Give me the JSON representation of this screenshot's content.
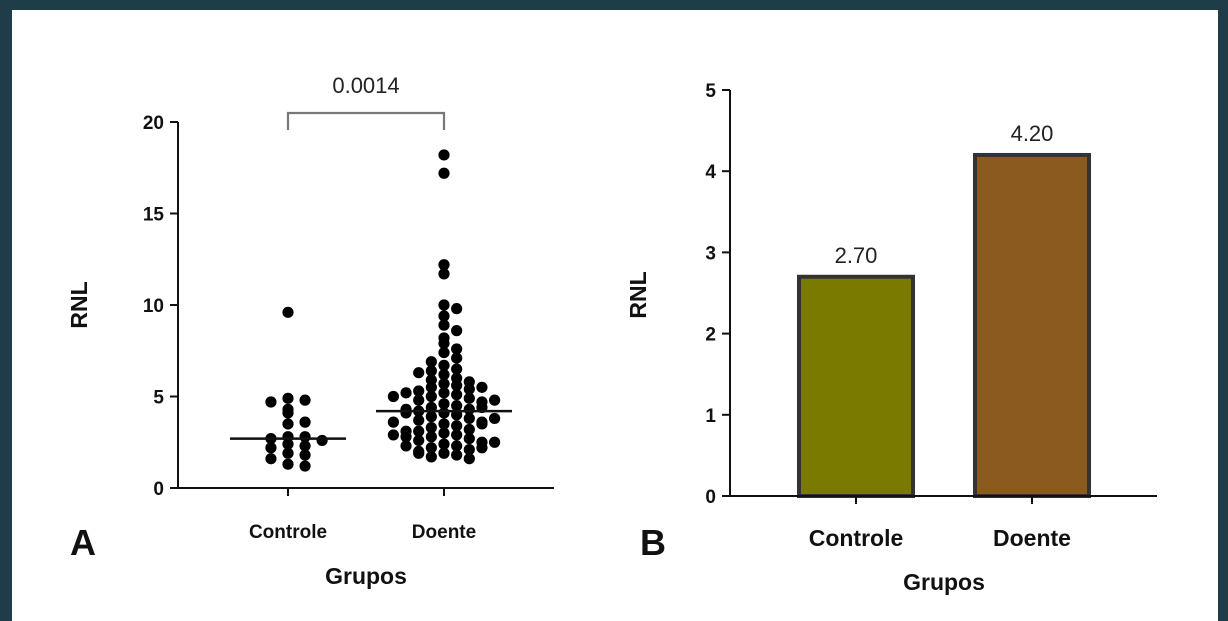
{
  "colors": {
    "outer_border": "#1f3d49",
    "background": "#ffffff",
    "points": "#000000",
    "bar_controle": "#7a7a00",
    "bar_doente": "#8b5a1e",
    "bar_edge": "#333333"
  },
  "chart_data": [
    {
      "panel": "A",
      "type": "scatter",
      "xlabel": "Grupos",
      "ylabel": "RNL",
      "categories": [
        "Controle",
        "Doente"
      ],
      "ylim": [
        0,
        20
      ],
      "yticks": [
        "0",
        "5",
        "10",
        "15",
        "20"
      ],
      "annotation": "0.0014",
      "medians": [
        2.7,
        4.2
      ],
      "series": [
        {
          "category": "Controle",
          "values": [
            9.6,
            4.9,
            4.8,
            4.7,
            4.3,
            4.1,
            3.6,
            3.5,
            2.8,
            2.8,
            2.7,
            2.6,
            2.4,
            2.3,
            2.2,
            1.9,
            1.8,
            1.6,
            1.3,
            1.2
          ]
        },
        {
          "category": "Doente",
          "values": [
            18.2,
            17.2,
            12.2,
            11.7,
            10.0,
            9.8,
            9.4,
            8.9,
            8.6,
            8.2,
            7.9,
            7.6,
            7.4,
            7.1,
            6.9,
            6.7,
            6.5,
            6.4,
            6.2,
            6.0,
            5.9,
            5.8,
            5.7,
            5.6,
            5.5,
            5.4,
            5.3,
            5.2,
            5.1,
            5.0,
            4.9,
            4.8,
            4.7,
            4.6,
            4.5,
            4.4,
            4.3,
            4.2,
            4.1,
            4.0,
            3.9,
            3.8,
            3.7,
            3.6,
            3.5,
            3.4,
            3.3,
            3.2,
            3.1,
            3.0,
            2.9,
            2.8,
            2.7,
            2.6,
            2.5,
            2.4,
            2.3,
            2.2,
            2.1,
            2.0,
            1.9,
            1.8,
            1.7,
            1.6,
            5.5,
            5.2,
            4.8,
            4.4,
            4.1,
            3.8,
            3.5,
            3.1,
            2.8,
            2.5,
            2.2,
            1.9,
            6.3,
            5.0,
            4.3,
            3.6,
            2.9,
            2.3
          ]
        }
      ]
    },
    {
      "panel": "B",
      "type": "bar",
      "xlabel": "Grupos",
      "ylabel": "RNL",
      "categories": [
        "Controle",
        "Doente"
      ],
      "values": [
        2.7,
        4.2
      ],
      "value_labels": [
        "2.70",
        "4.20"
      ],
      "ylim": [
        0,
        5
      ],
      "yticks": [
        "0",
        "1",
        "2",
        "3",
        "4",
        "5"
      ]
    }
  ]
}
